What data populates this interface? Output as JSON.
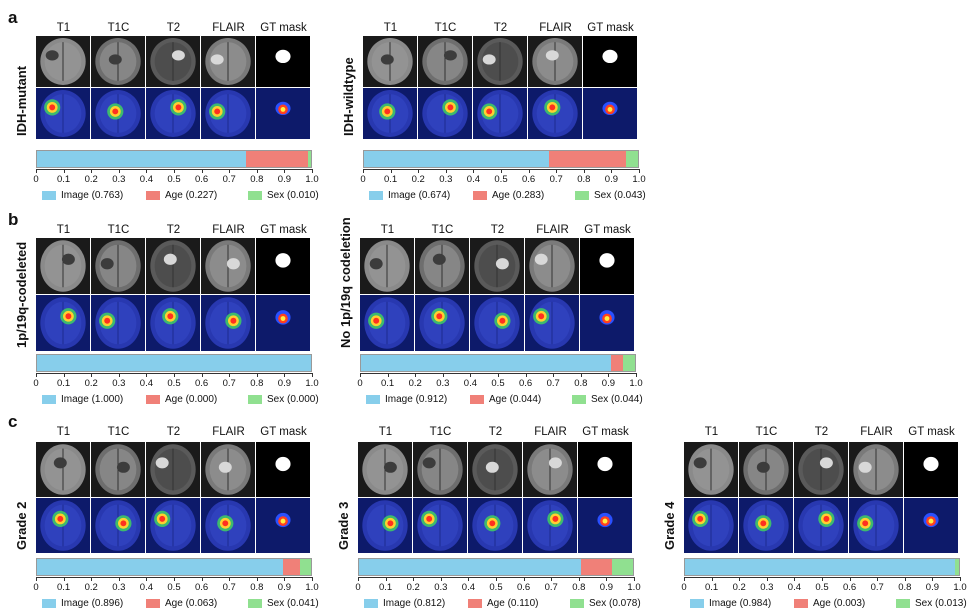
{
  "colors": {
    "image": "#87CEEB",
    "age": "#F08078",
    "sex": "#90E090"
  },
  "modalities": [
    "T1",
    "T1C",
    "T2",
    "FLAIR",
    "GT mask"
  ],
  "sections": [
    {
      "label": "a"
    },
    {
      "label": "b"
    },
    {
      "label": "c"
    }
  ],
  "panels": [
    {
      "row_label": "IDH-mutant",
      "legend": [
        "Image (0.763)",
        "Age (0.227)",
        "Sex (0.010)"
      ]
    },
    {
      "row_label": "IDH-wildtype",
      "legend": [
        "Image (0.674)",
        "Age (0.283)",
        "Sex (0.043)"
      ]
    },
    {
      "row_label": "1p/19q-codeleted",
      "legend": [
        "Image (1.000)",
        "Age (0.000)",
        "Sex (0.000)"
      ]
    },
    {
      "row_label": "No 1p/19q codeletion",
      "legend": [
        "Image (0.912)",
        "Age (0.044)",
        "Sex (0.044)"
      ]
    },
    {
      "row_label": "Grade 2",
      "legend": [
        "Image (0.896)",
        "Age (0.063)",
        "Sex (0.041)"
      ]
    },
    {
      "row_label": "Grade 3",
      "legend": [
        "Image (0.812)",
        "Age (0.110)",
        "Sex (0.078)"
      ]
    },
    {
      "row_label": "Grade 4",
      "legend": [
        "Image (0.984)",
        "Age (0.003)",
        "Sex (0.013)"
      ]
    }
  ],
  "chart_data": [
    {
      "type": "bar",
      "orientation": "horizontal-stacked",
      "title": "IDH-mutant",
      "categories": [
        "Image",
        "Age",
        "Sex"
      ],
      "values": [
        0.763,
        0.227,
        0.01
      ],
      "xlim": [
        0,
        1.0
      ],
      "xticks": [
        "0",
        "0.1",
        "0.2",
        "0.3",
        "0.4",
        "0.5",
        "0.6",
        "0.7",
        "0.8",
        "0.9",
        "1.0"
      ]
    },
    {
      "type": "bar",
      "orientation": "horizontal-stacked",
      "title": "IDH-wildtype",
      "categories": [
        "Image",
        "Age",
        "Sex"
      ],
      "values": [
        0.674,
        0.283,
        0.043
      ],
      "xlim": [
        0,
        1.0
      ],
      "xticks": [
        "0",
        "0.1",
        "0.2",
        "0.3",
        "0.4",
        "0.5",
        "0.6",
        "0.7",
        "0.8",
        "0.9",
        "1.0"
      ]
    },
    {
      "type": "bar",
      "orientation": "horizontal-stacked",
      "title": "1p/19q-codeleted",
      "categories": [
        "Image",
        "Age",
        "Sex"
      ],
      "values": [
        1.0,
        0.0,
        0.0
      ],
      "xlim": [
        0,
        1.0
      ],
      "xticks": [
        "0",
        "0.1",
        "0.2",
        "0.3",
        "0.4",
        "0.5",
        "0.6",
        "0.7",
        "0.8",
        "0.9",
        "1.0"
      ]
    },
    {
      "type": "bar",
      "orientation": "horizontal-stacked",
      "title": "No 1p/19q codeletion",
      "categories": [
        "Image",
        "Age",
        "Sex"
      ],
      "values": [
        0.912,
        0.044,
        0.044
      ],
      "xlim": [
        0,
        1.0
      ],
      "xticks": [
        "0",
        "0.1",
        "0.2",
        "0.3",
        "0.4",
        "0.5",
        "0.6",
        "0.7",
        "0.8",
        "0.9",
        "1.0"
      ]
    },
    {
      "type": "bar",
      "orientation": "horizontal-stacked",
      "title": "Grade 2",
      "categories": [
        "Image",
        "Age",
        "Sex"
      ],
      "values": [
        0.896,
        0.063,
        0.041
      ],
      "xlim": [
        0,
        1.0
      ],
      "xticks": [
        "0",
        "0.1",
        "0.2",
        "0.3",
        "0.4",
        "0.5",
        "0.6",
        "0.7",
        "0.8",
        "0.9",
        "1.0"
      ]
    },
    {
      "type": "bar",
      "orientation": "horizontal-stacked",
      "title": "Grade 3",
      "categories": [
        "Image",
        "Age",
        "Sex"
      ],
      "values": [
        0.812,
        0.11,
        0.078
      ],
      "xlim": [
        0,
        1.0
      ],
      "xticks": [
        "0",
        "0.1",
        "0.2",
        "0.3",
        "0.4",
        "0.5",
        "0.6",
        "0.7",
        "0.8",
        "0.9",
        "1.0"
      ]
    },
    {
      "type": "bar",
      "orientation": "horizontal-stacked",
      "title": "Grade 4",
      "categories": [
        "Image",
        "Age",
        "Sex"
      ],
      "values": [
        0.984,
        0.003,
        0.013
      ],
      "xlim": [
        0,
        1.0
      ],
      "xticks": [
        "0",
        "0.1",
        "0.2",
        "0.3",
        "0.4",
        "0.5",
        "0.6",
        "0.7",
        "0.8",
        "0.9",
        "1.0"
      ]
    }
  ]
}
